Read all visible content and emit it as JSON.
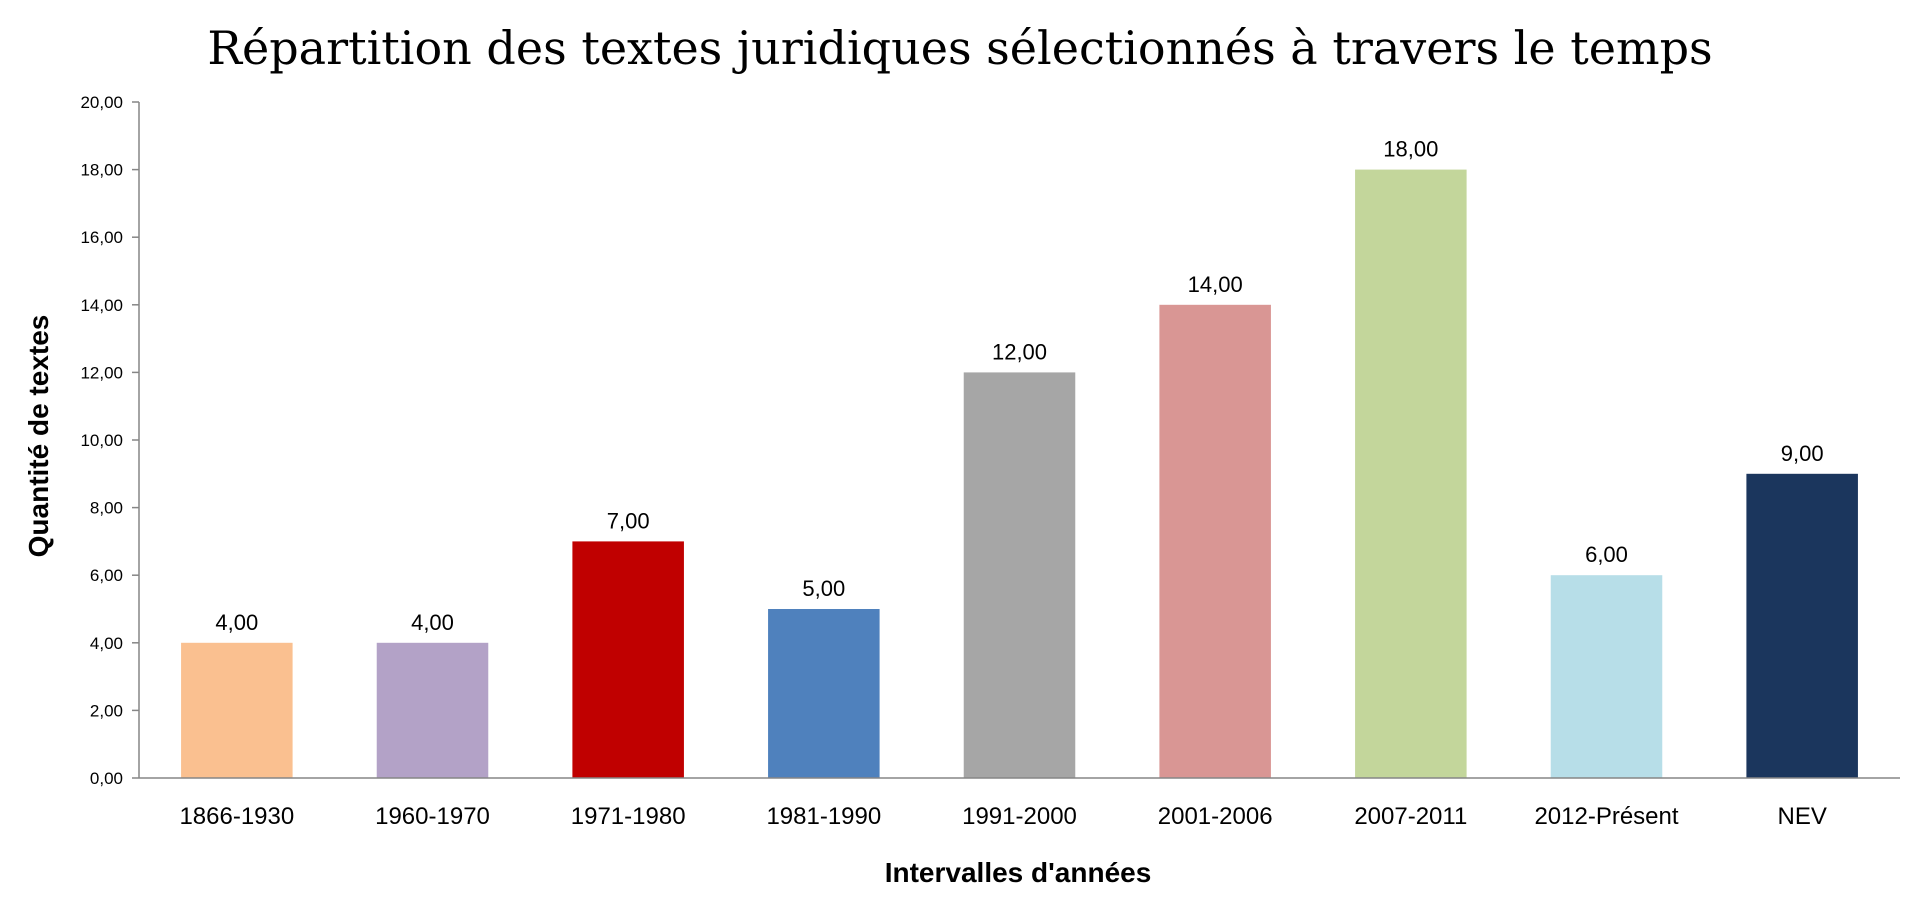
{
  "chart_data": {
    "type": "bar",
    "title": "Répartition des textes juridiques sélectionnés à travers le temps",
    "xlabel": "Intervalles d'années",
    "ylabel": "Quantité de textes",
    "categories": [
      "1866-1930",
      "1960-1970",
      "1971-1980",
      "1981-1990",
      "1991-2000",
      "2001-2006",
      "2007-2011",
      "2012-Présent",
      "NEV"
    ],
    "values": [
      4,
      4,
      7,
      5,
      12,
      14,
      18,
      6,
      9
    ],
    "value_labels": [
      "4,00",
      "4,00",
      "7,00",
      "5,00",
      "12,00",
      "14,00",
      "18,00",
      "6,00",
      "9,00"
    ],
    "colors": [
      "#FAC090",
      "#B3A2C7",
      "#C00000",
      "#4F81BD",
      "#A6A6A6",
      "#D99694",
      "#C3D69B",
      "#B7DEE8",
      "#1B365D"
    ],
    "ylim": [
      0,
      20
    ],
    "yticks": [
      0,
      2,
      4,
      6,
      8,
      10,
      12,
      14,
      16,
      18,
      20
    ],
    "ytick_labels": [
      "0,00",
      "2,00",
      "4,00",
      "6,00",
      "8,00",
      "10,00",
      "12,00",
      "14,00",
      "16,00",
      "18,00",
      "20,00"
    ],
    "grid": false,
    "legend": "none"
  }
}
